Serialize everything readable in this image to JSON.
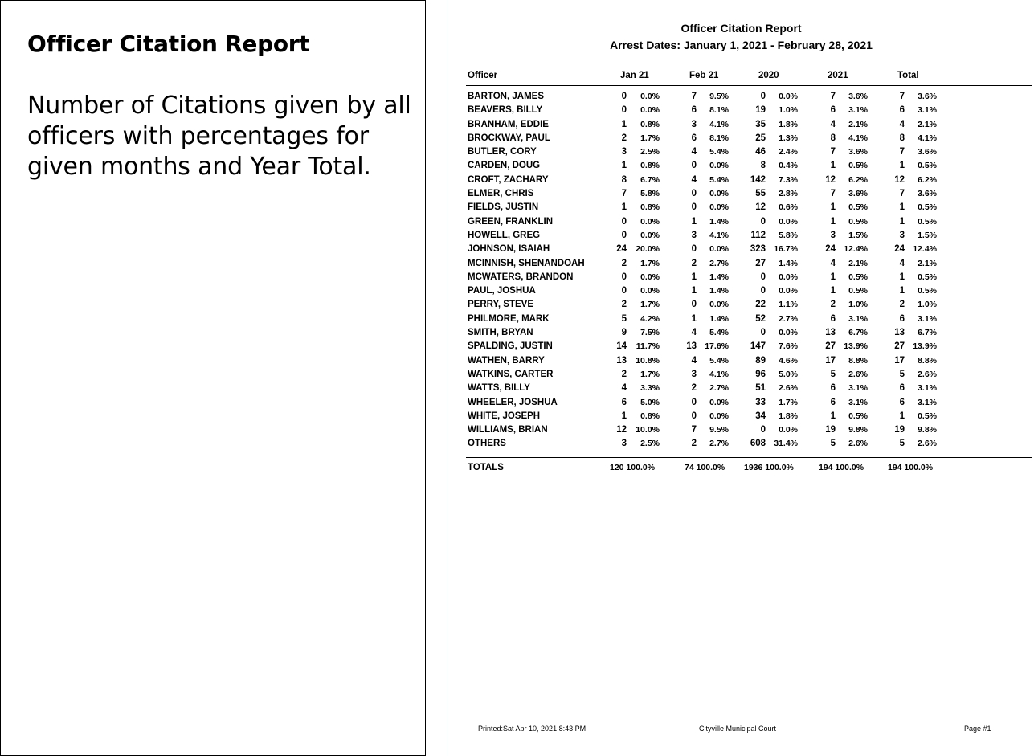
{
  "left": {
    "title": "Officer Citation Report",
    "description": "Number of Citations given by all officers with percentages for given months and Year Total."
  },
  "report": {
    "title": "Officer Citation Report",
    "subtitle": "Arrest Dates: January 1, 2021  -  February 28, 2021",
    "columns": [
      "Officer",
      "Jan 21",
      "Feb 21",
      "2020",
      "2021",
      "Total"
    ],
    "rows": [
      [
        "BARTON, JAMES",
        "0",
        "0.0%",
        "7",
        "9.5%",
        "0",
        "0.0%",
        "7",
        "3.6%",
        "7",
        "3.6%"
      ],
      [
        "BEAVERS, BILLY",
        "0",
        "0.0%",
        "6",
        "8.1%",
        "19",
        "1.0%",
        "6",
        "3.1%",
        "6",
        "3.1%"
      ],
      [
        "BRANHAM, EDDIE",
        "1",
        "0.8%",
        "3",
        "4.1%",
        "35",
        "1.8%",
        "4",
        "2.1%",
        "4",
        "2.1%"
      ],
      [
        "BROCKWAY, PAUL",
        "2",
        "1.7%",
        "6",
        "8.1%",
        "25",
        "1.3%",
        "8",
        "4.1%",
        "8",
        "4.1%"
      ],
      [
        "BUTLER, CORY",
        "3",
        "2.5%",
        "4",
        "5.4%",
        "46",
        "2.4%",
        "7",
        "3.6%",
        "7",
        "3.6%"
      ],
      [
        "CARDEN, DOUG",
        "1",
        "0.8%",
        "0",
        "0.0%",
        "8",
        "0.4%",
        "1",
        "0.5%",
        "1",
        "0.5%"
      ],
      [
        "CROFT, ZACHARY",
        "8",
        "6.7%",
        "4",
        "5.4%",
        "142",
        "7.3%",
        "12",
        "6.2%",
        "12",
        "6.2%"
      ],
      [
        "ELMER, CHRIS",
        "7",
        "5.8%",
        "0",
        "0.0%",
        "55",
        "2.8%",
        "7",
        "3.6%",
        "7",
        "3.6%"
      ],
      [
        "FIELDS, JUSTIN",
        "1",
        "0.8%",
        "0",
        "0.0%",
        "12",
        "0.6%",
        "1",
        "0.5%",
        "1",
        "0.5%"
      ],
      [
        "GREEN, FRANKLIN",
        "0",
        "0.0%",
        "1",
        "1.4%",
        "0",
        "0.0%",
        "1",
        "0.5%",
        "1",
        "0.5%"
      ],
      [
        "HOWELL, GREG",
        "0",
        "0.0%",
        "3",
        "4.1%",
        "112",
        "5.8%",
        "3",
        "1.5%",
        "3",
        "1.5%"
      ],
      [
        "JOHNSON, ISAIAH",
        "24",
        "20.0%",
        "0",
        "0.0%",
        "323",
        "16.7%",
        "24",
        "12.4%",
        "24",
        "12.4%"
      ],
      [
        "MCINNISH, SHENANDOAH",
        "2",
        "1.7%",
        "2",
        "2.7%",
        "27",
        "1.4%",
        "4",
        "2.1%",
        "4",
        "2.1%"
      ],
      [
        "MCWATERS, BRANDON",
        "0",
        "0.0%",
        "1",
        "1.4%",
        "0",
        "0.0%",
        "1",
        "0.5%",
        "1",
        "0.5%"
      ],
      [
        "PAUL, JOSHUA",
        "0",
        "0.0%",
        "1",
        "1.4%",
        "0",
        "0.0%",
        "1",
        "0.5%",
        "1",
        "0.5%"
      ],
      [
        "PERRY, STEVE",
        "2",
        "1.7%",
        "0",
        "0.0%",
        "22",
        "1.1%",
        "2",
        "1.0%",
        "2",
        "1.0%"
      ],
      [
        "PHILMORE, MARK",
        "5",
        "4.2%",
        "1",
        "1.4%",
        "52",
        "2.7%",
        "6",
        "3.1%",
        "6",
        "3.1%"
      ],
      [
        "SMITH, BRYAN",
        "9",
        "7.5%",
        "4",
        "5.4%",
        "0",
        "0.0%",
        "13",
        "6.7%",
        "13",
        "6.7%"
      ],
      [
        "SPALDING, JUSTIN",
        "14",
        "11.7%",
        "13",
        "17.6%",
        "147",
        "7.6%",
        "27",
        "13.9%",
        "27",
        "13.9%"
      ],
      [
        "WATHEN, BARRY",
        "13",
        "10.8%",
        "4",
        "5.4%",
        "89",
        "4.6%",
        "17",
        "8.8%",
        "17",
        "8.8%"
      ],
      [
        "WATKINS, CARTER",
        "2",
        "1.7%",
        "3",
        "4.1%",
        "96",
        "5.0%",
        "5",
        "2.6%",
        "5",
        "2.6%"
      ],
      [
        "WATTS, BILLY",
        "4",
        "3.3%",
        "2",
        "2.7%",
        "51",
        "2.6%",
        "6",
        "3.1%",
        "6",
        "3.1%"
      ],
      [
        "WHEELER, JOSHUA",
        "6",
        "5.0%",
        "0",
        "0.0%",
        "33",
        "1.7%",
        "6",
        "3.1%",
        "6",
        "3.1%"
      ],
      [
        "WHITE, JOSEPH",
        "1",
        "0.8%",
        "0",
        "0.0%",
        "34",
        "1.8%",
        "1",
        "0.5%",
        "1",
        "0.5%"
      ],
      [
        "WILLIAMS, BRIAN",
        "12",
        "10.0%",
        "7",
        "9.5%",
        "0",
        "0.0%",
        "19",
        "9.8%",
        "19",
        "9.8%"
      ],
      [
        "OTHERS",
        "3",
        "2.5%",
        "2",
        "2.7%",
        "608",
        "31.4%",
        "5",
        "2.6%",
        "5",
        "2.6%"
      ]
    ],
    "totals": {
      "label": "TOTALS",
      "values": [
        "120 100.0%",
        "74 100.0%",
        "1936  100.0%",
        "194 100.0%",
        "194 100.0%"
      ]
    },
    "footer": {
      "printed": "Printed:Sat Apr 10, 2021 8:43 PM",
      "court": "Cityville Municipal Court",
      "page": "Page #1"
    }
  }
}
